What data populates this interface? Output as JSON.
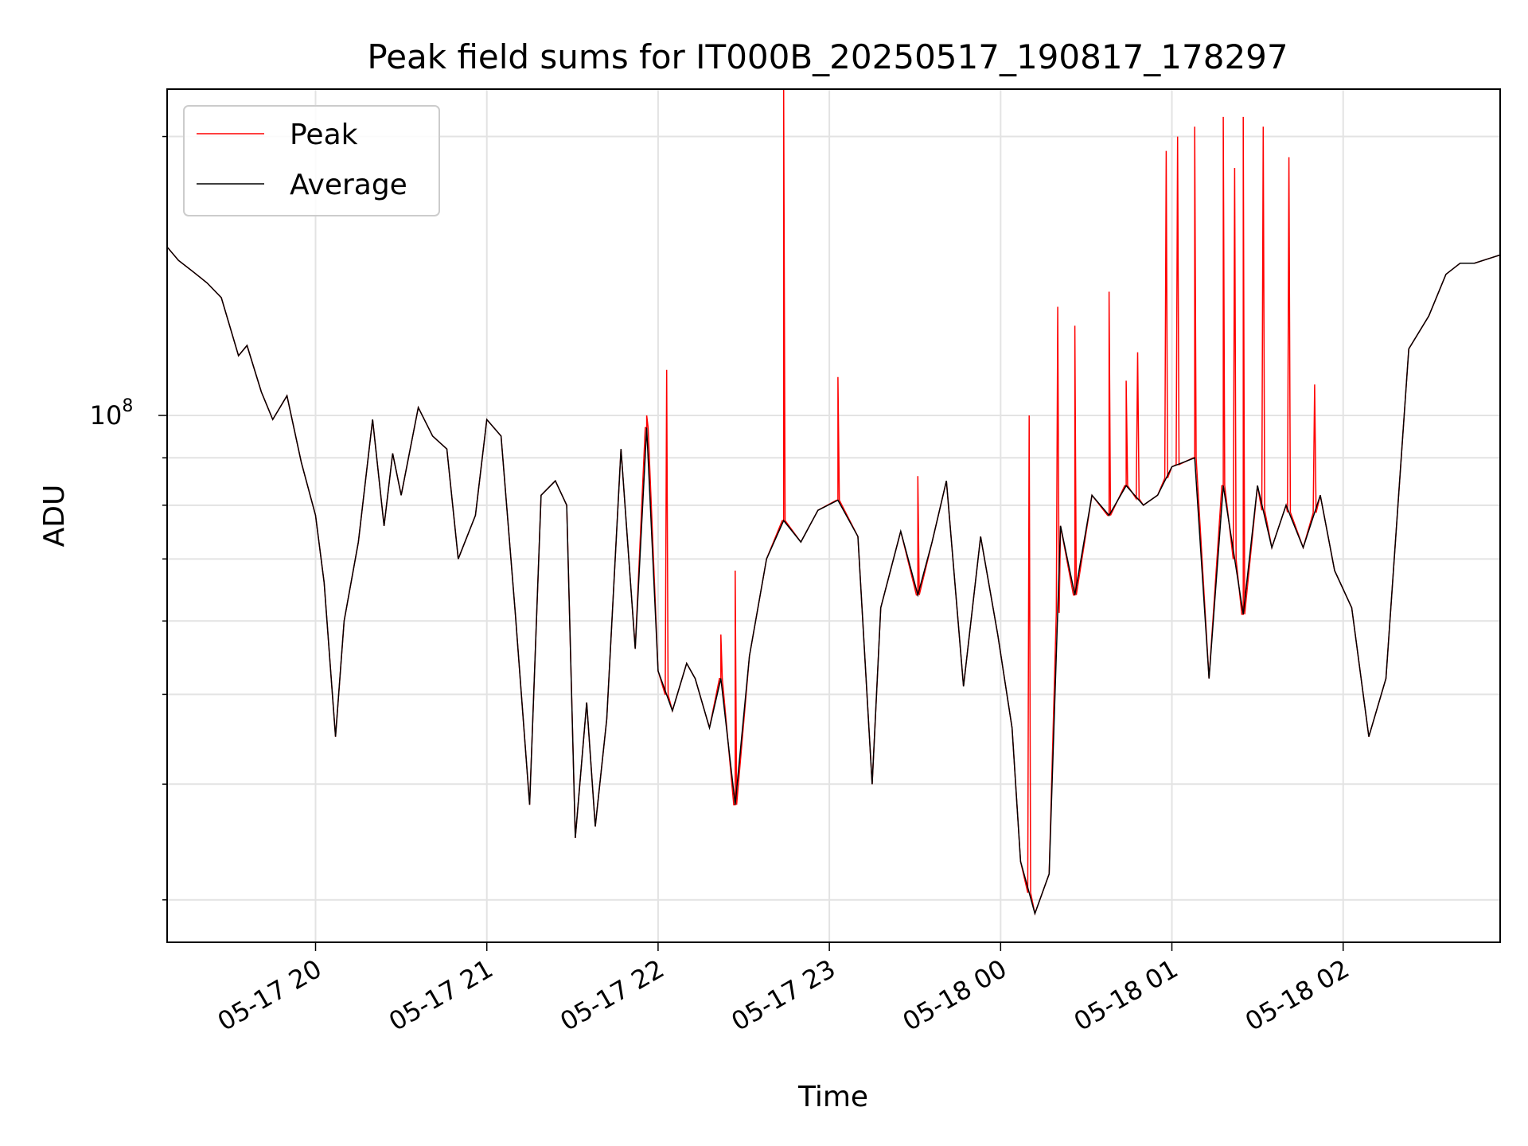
{
  "chart_data": {
    "type": "line",
    "title": "Peak field sums for IT000B_20250517_190817_178297",
    "xlabel": "Time",
    "ylabel": "ADU",
    "y_scale": "log",
    "ylim": [
      27000000,
      225000000
    ],
    "xlim": [
      "2025-05-17 19:08",
      "2025-05-18 02:55"
    ],
    "y_tick_labels": [
      {
        "value": 100000000,
        "mantissa": "10",
        "exponent": "8"
      }
    ],
    "y_minor_ticks": [
      30000000,
      40000000,
      50000000,
      60000000,
      70000000,
      80000000,
      90000000,
      200000000
    ],
    "x_tick_labels": [
      {
        "t": "2025-05-17 20:00",
        "label": "05-17 20"
      },
      {
        "t": "2025-05-17 21:00",
        "label": "05-17 21"
      },
      {
        "t": "2025-05-17 22:00",
        "label": "05-17 22"
      },
      {
        "t": "2025-05-17 23:00",
        "label": "05-17 23"
      },
      {
        "t": "2025-05-18 00:00",
        "label": "05-18 00"
      },
      {
        "t": "2025-05-18 01:00",
        "label": "05-18 01"
      },
      {
        "t": "2025-05-18 02:00",
        "label": "05-18 02"
      }
    ],
    "grid": true,
    "legend_position": "upper-left",
    "series": [
      {
        "name": "Average",
        "color": "#000000",
        "x": [
          "2025-05-17 19:08",
          "2025-05-17 19:12",
          "2025-05-17 19:17",
          "2025-05-17 19:22",
          "2025-05-17 19:27",
          "2025-05-17 19:33",
          "2025-05-17 19:36",
          "2025-05-17 19:41",
          "2025-05-17 19:45",
          "2025-05-17 19:50",
          "2025-05-17 19:55",
          "2025-05-17 20:00",
          "2025-05-17 20:03",
          "2025-05-17 20:07",
          "2025-05-17 20:10",
          "2025-05-17 20:15",
          "2025-05-17 20:20",
          "2025-05-17 20:24",
          "2025-05-17 20:27",
          "2025-05-17 20:30",
          "2025-05-17 20:36",
          "2025-05-17 20:41",
          "2025-05-17 20:46",
          "2025-05-17 20:50",
          "2025-05-17 20:56",
          "2025-05-17 21:00",
          "2025-05-17 21:05",
          "2025-05-17 21:10",
          "2025-05-17 21:15",
          "2025-05-17 21:19",
          "2025-05-17 21:24",
          "2025-05-17 21:28",
          "2025-05-17 21:31",
          "2025-05-17 21:35",
          "2025-05-17 21:38",
          "2025-05-17 21:42",
          "2025-05-17 21:47",
          "2025-05-17 21:52",
          "2025-05-17 21:56",
          "2025-05-17 22:00",
          "2025-05-17 22:05",
          "2025-05-17 22:10",
          "2025-05-17 22:13",
          "2025-05-17 22:18",
          "2025-05-17 22:22",
          "2025-05-17 22:27",
          "2025-05-17 22:32",
          "2025-05-17 22:38",
          "2025-05-17 22:44",
          "2025-05-17 22:50",
          "2025-05-17 22:56",
          "2025-05-17 23:03",
          "2025-05-17 23:10",
          "2025-05-17 23:15",
          "2025-05-17 23:18",
          "2025-05-17 23:25",
          "2025-05-17 23:31",
          "2025-05-17 23:36",
          "2025-05-17 23:41",
          "2025-05-17 23:47",
          "2025-05-17 23:53",
          "2025-05-17 23:59",
          "2025-05-18 00:04",
          "2025-05-18 00:07",
          "2025-05-18 00:12",
          "2025-05-18 00:17",
          "2025-05-18 00:21",
          "2025-05-18 00:26",
          "2025-05-18 00:32",
          "2025-05-18 00:38",
          "2025-05-18 00:44",
          "2025-05-18 00:50",
          "2025-05-18 00:55",
          "2025-05-18 01:00",
          "2025-05-18 01:08",
          "2025-05-18 01:13",
          "2025-05-18 01:18",
          "2025-05-18 01:25",
          "2025-05-18 01:30",
          "2025-05-18 01:35",
          "2025-05-18 01:40",
          "2025-05-18 01:46",
          "2025-05-18 01:52",
          "2025-05-18 01:57",
          "2025-05-18 02:03",
          "2025-05-18 02:09",
          "2025-05-18 02:15",
          "2025-05-18 02:23",
          "2025-05-18 02:30",
          "2025-05-18 02:36",
          "2025-05-18 02:41",
          "2025-05-18 02:46",
          "2025-05-18 02:52",
          "2025-05-18 02:55"
        ],
        "values": [
          152000000,
          147000000,
          143000000,
          139000000,
          134000000,
          116000000,
          119000000,
          106000000,
          99000000,
          105000000,
          89000000,
          78000000,
          66000000,
          45000000,
          60000000,
          73000000,
          99000000,
          76000000,
          91000000,
          82000000,
          102000000,
          95000000,
          92000000,
          70000000,
          78000000,
          99000000,
          95000000,
          61000000,
          38000000,
          82000000,
          85000000,
          80000000,
          35000000,
          49000000,
          36000000,
          47000000,
          92000000,
          56000000,
          97000000,
          53000000,
          48000000,
          54000000,
          52000000,
          46000000,
          52000000,
          38000000,
          55000000,
          70000000,
          77000000,
          73000000,
          79000000,
          81000000,
          74000000,
          40000000,
          62000000,
          75000000,
          64000000,
          73000000,
          85000000,
          51000000,
          74000000,
          58000000,
          46000000,
          33000000,
          29000000,
          32000000,
          76000000,
          64000000,
          82000000,
          78000000,
          84000000,
          80000000,
          82000000,
          88000000,
          90000000,
          52000000,
          84000000,
          61000000,
          84000000,
          72000000,
          80000000,
          72000000,
          82000000,
          68000000,
          62000000,
          45000000,
          52000000,
          118000000,
          128000000,
          142000000,
          146000000,
          146000000,
          148000000,
          149000000
        ]
      },
      {
        "name": "Peak",
        "color": "#ff0000",
        "x": [
          "2025-05-17 21:56",
          "2025-05-17 22:03",
          "2025-05-17 22:22",
          "2025-05-17 22:27",
          "2025-05-17 22:44",
          "2025-05-17 23:03",
          "2025-05-17 23:31",
          "2025-05-18 00:10",
          "2025-05-18 00:20",
          "2025-05-18 00:26",
          "2025-05-18 00:38",
          "2025-05-18 00:44",
          "2025-05-18 00:48",
          "2025-05-18 00:58",
          "2025-05-18 01:02",
          "2025-05-18 01:08",
          "2025-05-18 01:18",
          "2025-05-18 01:22",
          "2025-05-18 01:25",
          "2025-05-18 01:32",
          "2025-05-18 01:41",
          "2025-05-18 01:50"
        ],
        "values": [
          100000000,
          112000000,
          58000000,
          68000000,
          225000000,
          110000000,
          86000000,
          100000000,
          131000000,
          125000000,
          136000000,
          109000000,
          117000000,
          193000000,
          200000000,
          205000000,
          210000000,
          185000000,
          210000000,
          205000000,
          190000000,
          108000000
        ]
      }
    ]
  }
}
